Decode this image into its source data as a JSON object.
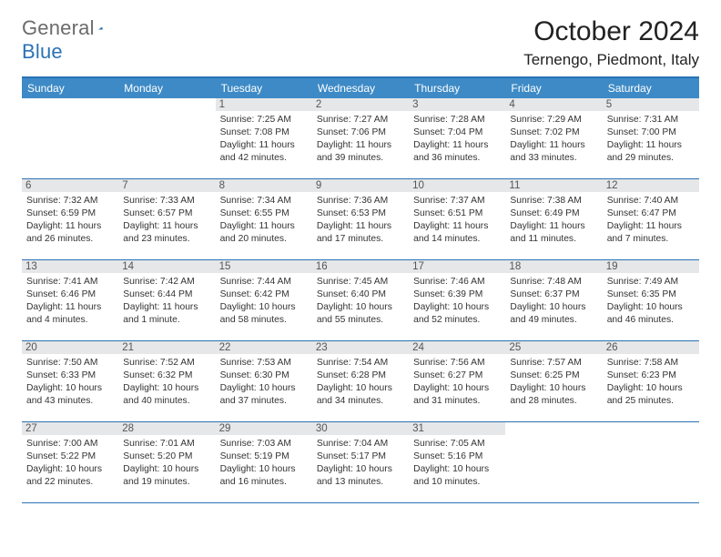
{
  "logo": {
    "text_gray": "General",
    "text_blue": "Blue"
  },
  "header": {
    "month_title": "October 2024",
    "location": "Ternengo, Piedmont, Italy"
  },
  "colors": {
    "header_bar": "#3d8ac6",
    "border": "#2a72b5",
    "daynum_bg": "#e6e7e8",
    "text": "#333333",
    "logo_gray": "#6b6b6b",
    "logo_blue": "#2a72b5"
  },
  "weekdays": [
    "Sunday",
    "Monday",
    "Tuesday",
    "Wednesday",
    "Thursday",
    "Friday",
    "Saturday"
  ],
  "weeks": [
    [
      {
        "empty": true
      },
      {
        "empty": true
      },
      {
        "num": "1",
        "sunrise": "Sunrise: 7:25 AM",
        "sunset": "Sunset: 7:08 PM",
        "daylight": "Daylight: 11 hours and 42 minutes."
      },
      {
        "num": "2",
        "sunrise": "Sunrise: 7:27 AM",
        "sunset": "Sunset: 7:06 PM",
        "daylight": "Daylight: 11 hours and 39 minutes."
      },
      {
        "num": "3",
        "sunrise": "Sunrise: 7:28 AM",
        "sunset": "Sunset: 7:04 PM",
        "daylight": "Daylight: 11 hours and 36 minutes."
      },
      {
        "num": "4",
        "sunrise": "Sunrise: 7:29 AM",
        "sunset": "Sunset: 7:02 PM",
        "daylight": "Daylight: 11 hours and 33 minutes."
      },
      {
        "num": "5",
        "sunrise": "Sunrise: 7:31 AM",
        "sunset": "Sunset: 7:00 PM",
        "daylight": "Daylight: 11 hours and 29 minutes."
      }
    ],
    [
      {
        "num": "6",
        "sunrise": "Sunrise: 7:32 AM",
        "sunset": "Sunset: 6:59 PM",
        "daylight": "Daylight: 11 hours and 26 minutes."
      },
      {
        "num": "7",
        "sunrise": "Sunrise: 7:33 AM",
        "sunset": "Sunset: 6:57 PM",
        "daylight": "Daylight: 11 hours and 23 minutes."
      },
      {
        "num": "8",
        "sunrise": "Sunrise: 7:34 AM",
        "sunset": "Sunset: 6:55 PM",
        "daylight": "Daylight: 11 hours and 20 minutes."
      },
      {
        "num": "9",
        "sunrise": "Sunrise: 7:36 AM",
        "sunset": "Sunset: 6:53 PM",
        "daylight": "Daylight: 11 hours and 17 minutes."
      },
      {
        "num": "10",
        "sunrise": "Sunrise: 7:37 AM",
        "sunset": "Sunset: 6:51 PM",
        "daylight": "Daylight: 11 hours and 14 minutes."
      },
      {
        "num": "11",
        "sunrise": "Sunrise: 7:38 AM",
        "sunset": "Sunset: 6:49 PM",
        "daylight": "Daylight: 11 hours and 11 minutes."
      },
      {
        "num": "12",
        "sunrise": "Sunrise: 7:40 AM",
        "sunset": "Sunset: 6:47 PM",
        "daylight": "Daylight: 11 hours and 7 minutes."
      }
    ],
    [
      {
        "num": "13",
        "sunrise": "Sunrise: 7:41 AM",
        "sunset": "Sunset: 6:46 PM",
        "daylight": "Daylight: 11 hours and 4 minutes."
      },
      {
        "num": "14",
        "sunrise": "Sunrise: 7:42 AM",
        "sunset": "Sunset: 6:44 PM",
        "daylight": "Daylight: 11 hours and 1 minute."
      },
      {
        "num": "15",
        "sunrise": "Sunrise: 7:44 AM",
        "sunset": "Sunset: 6:42 PM",
        "daylight": "Daylight: 10 hours and 58 minutes."
      },
      {
        "num": "16",
        "sunrise": "Sunrise: 7:45 AM",
        "sunset": "Sunset: 6:40 PM",
        "daylight": "Daylight: 10 hours and 55 minutes."
      },
      {
        "num": "17",
        "sunrise": "Sunrise: 7:46 AM",
        "sunset": "Sunset: 6:39 PM",
        "daylight": "Daylight: 10 hours and 52 minutes."
      },
      {
        "num": "18",
        "sunrise": "Sunrise: 7:48 AM",
        "sunset": "Sunset: 6:37 PM",
        "daylight": "Daylight: 10 hours and 49 minutes."
      },
      {
        "num": "19",
        "sunrise": "Sunrise: 7:49 AM",
        "sunset": "Sunset: 6:35 PM",
        "daylight": "Daylight: 10 hours and 46 minutes."
      }
    ],
    [
      {
        "num": "20",
        "sunrise": "Sunrise: 7:50 AM",
        "sunset": "Sunset: 6:33 PM",
        "daylight": "Daylight: 10 hours and 43 minutes."
      },
      {
        "num": "21",
        "sunrise": "Sunrise: 7:52 AM",
        "sunset": "Sunset: 6:32 PM",
        "daylight": "Daylight: 10 hours and 40 minutes."
      },
      {
        "num": "22",
        "sunrise": "Sunrise: 7:53 AM",
        "sunset": "Sunset: 6:30 PM",
        "daylight": "Daylight: 10 hours and 37 minutes."
      },
      {
        "num": "23",
        "sunrise": "Sunrise: 7:54 AM",
        "sunset": "Sunset: 6:28 PM",
        "daylight": "Daylight: 10 hours and 34 minutes."
      },
      {
        "num": "24",
        "sunrise": "Sunrise: 7:56 AM",
        "sunset": "Sunset: 6:27 PM",
        "daylight": "Daylight: 10 hours and 31 minutes."
      },
      {
        "num": "25",
        "sunrise": "Sunrise: 7:57 AM",
        "sunset": "Sunset: 6:25 PM",
        "daylight": "Daylight: 10 hours and 28 minutes."
      },
      {
        "num": "26",
        "sunrise": "Sunrise: 7:58 AM",
        "sunset": "Sunset: 6:23 PM",
        "daylight": "Daylight: 10 hours and 25 minutes."
      }
    ],
    [
      {
        "num": "27",
        "sunrise": "Sunrise: 7:00 AM",
        "sunset": "Sunset: 5:22 PM",
        "daylight": "Daylight: 10 hours and 22 minutes."
      },
      {
        "num": "28",
        "sunrise": "Sunrise: 7:01 AM",
        "sunset": "Sunset: 5:20 PM",
        "daylight": "Daylight: 10 hours and 19 minutes."
      },
      {
        "num": "29",
        "sunrise": "Sunrise: 7:03 AM",
        "sunset": "Sunset: 5:19 PM",
        "daylight": "Daylight: 10 hours and 16 minutes."
      },
      {
        "num": "30",
        "sunrise": "Sunrise: 7:04 AM",
        "sunset": "Sunset: 5:17 PM",
        "daylight": "Daylight: 10 hours and 13 minutes."
      },
      {
        "num": "31",
        "sunrise": "Sunrise: 7:05 AM",
        "sunset": "Sunset: 5:16 PM",
        "daylight": "Daylight: 10 hours and 10 minutes."
      },
      {
        "empty": true
      },
      {
        "empty": true
      }
    ]
  ]
}
